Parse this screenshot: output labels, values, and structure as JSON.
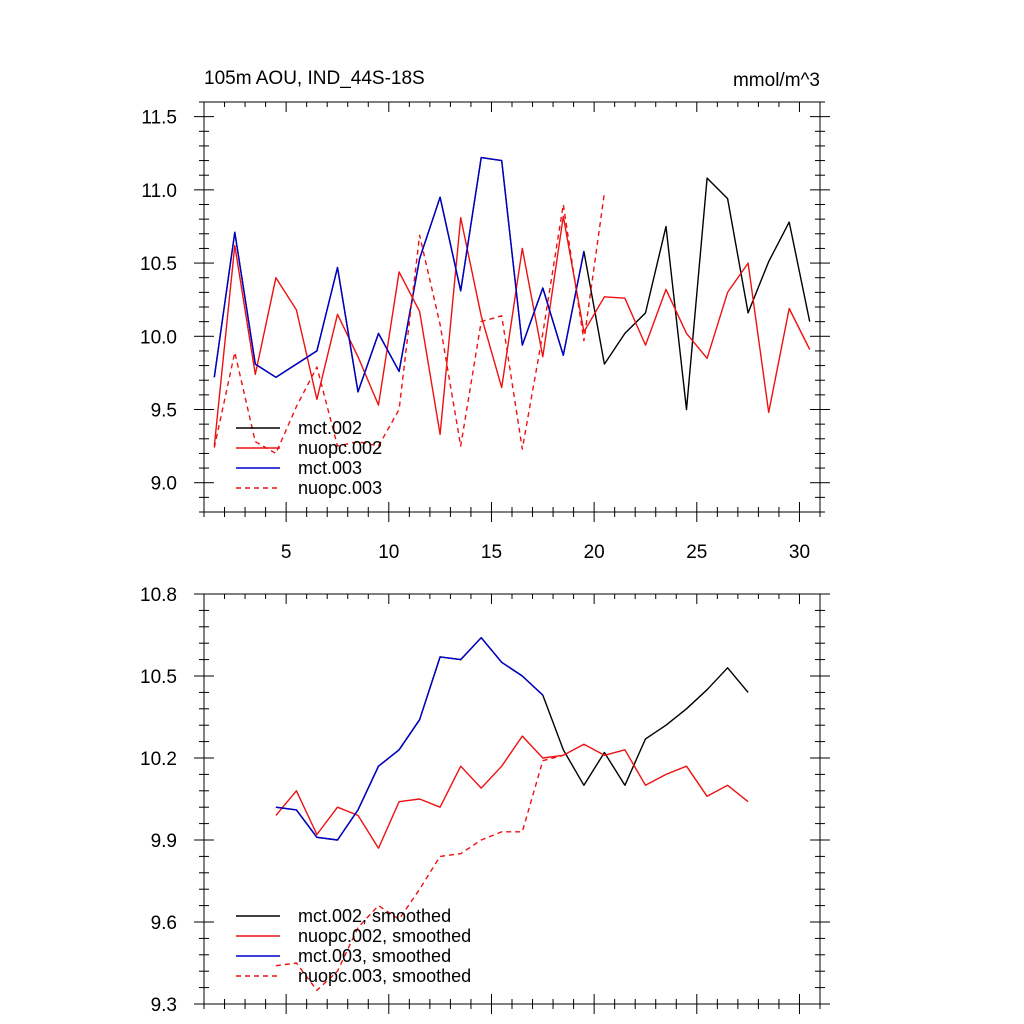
{
  "chart_data": [
    {
      "type": "line",
      "title": "105m AOU, IND_44S-18S",
      "units": "mmol/m^3",
      "xlim": [
        1,
        31
      ],
      "ylim": [
        8.8,
        11.6
      ],
      "xticks": [
        5,
        10,
        15,
        20,
        25,
        30
      ],
      "xtick_labels": [
        "5",
        "10",
        "15",
        "20",
        "25",
        "30"
      ],
      "yticks": [
        9.0,
        9.5,
        10.0,
        10.5,
        11.0,
        11.5
      ],
      "ytick_labels": [
        "9.0",
        "9.5",
        "10.0",
        "10.5",
        "11.0",
        "11.5"
      ],
      "legend_position": "bottom-left",
      "series": [
        {
          "name": "mct.002",
          "color": "#000000",
          "dash": false,
          "x": [
            1.5,
            2.5,
            3.5,
            4.5,
            5.5,
            6.5,
            7.5,
            8.5,
            9.5,
            10.5,
            11.5,
            12.5,
            13.5,
            14.5,
            15.5,
            16.5,
            17.5,
            18.5,
            19.5,
            20.5,
            21.5,
            22.5,
            23.5,
            24.5,
            25.5,
            26.5,
            27.5,
            28.5,
            29.5,
            30.5
          ],
          "values": [
            9.72,
            10.71,
            9.81,
            9.72,
            9.81,
            9.9,
            10.47,
            9.62,
            10.02,
            9.76,
            10.53,
            10.95,
            10.31,
            11.22,
            11.2,
            9.94,
            10.33,
            9.87,
            10.58,
            9.81,
            10.02,
            10.16,
            10.75,
            9.5,
            11.08,
            10.94,
            10.16,
            10.51,
            10.78,
            10.1
          ]
        },
        {
          "name": "nuopc.002",
          "color": "#ee1111",
          "dash": false,
          "x": [
            1.5,
            2.5,
            3.5,
            4.5,
            5.5,
            6.5,
            7.5,
            8.5,
            9.5,
            10.5,
            11.5,
            12.5,
            13.5,
            14.5,
            15.5,
            16.5,
            17.5,
            18.5,
            19.5,
            20.5,
            21.5,
            22.5,
            23.5,
            24.5,
            25.5,
            26.5,
            27.5,
            28.5,
            29.5,
            30.5
          ],
          "values": [
            9.25,
            10.62,
            9.74,
            10.4,
            10.18,
            9.57,
            10.15,
            9.86,
            9.53,
            10.44,
            10.17,
            9.33,
            10.81,
            10.14,
            9.65,
            10.6,
            9.86,
            10.82,
            10.03,
            10.27,
            10.26,
            9.94,
            10.32,
            10.02,
            9.85,
            10.3,
            10.5,
            9.48,
            10.19,
            9.91
          ]
        },
        {
          "name": "mct.003",
          "color": "#0000cc",
          "dash": false,
          "x": [
            1.5,
            2.5,
            3.5,
            4.5,
            5.5,
            6.5,
            7.5,
            8.5,
            9.5,
            10.5,
            11.5,
            12.5,
            13.5,
            14.5,
            15.5,
            16.5,
            17.5,
            18.5,
            19.5
          ],
          "values": [
            9.72,
            10.71,
            9.81,
            9.72,
            9.81,
            9.9,
            10.47,
            9.62,
            10.02,
            9.76,
            10.53,
            10.95,
            10.31,
            11.22,
            11.2,
            9.94,
            10.33,
            9.87,
            10.58
          ]
        },
        {
          "name": "nuopc.003",
          "color": "#ee1111",
          "dash": true,
          "x": [
            1.5,
            2.5,
            3.5,
            4.5,
            5.5,
            6.5,
            7.5,
            8.5,
            9.5,
            10.5,
            11.5,
            12.5,
            13.5,
            14.5,
            15.5,
            16.5,
            17.5,
            18.5,
            19.5,
            20.5
          ],
          "values": [
            9.24,
            9.89,
            9.28,
            9.2,
            9.52,
            9.79,
            9.25,
            9.28,
            9.25,
            9.5,
            10.69,
            10.08,
            9.25,
            10.1,
            10.14,
            9.23,
            10.02,
            10.9,
            9.97,
            10.98
          ]
        }
      ]
    },
    {
      "type": "line",
      "title": "",
      "xlim": [
        1,
        31
      ],
      "ylim": [
        9.3,
        10.8
      ],
      "xticks": [
        5,
        10,
        15,
        20,
        25,
        30
      ],
      "xtick_labels": [],
      "yticks": [
        9.3,
        9.6,
        9.9,
        10.2,
        10.5,
        10.8
      ],
      "ytick_labels": [
        "9.3",
        "9.6",
        "9.9",
        "10.2",
        "10.5",
        "10.8"
      ],
      "legend_position": "bottom-left",
      "series": [
        {
          "name": "mct.002, smoothed",
          "color": "#000000",
          "dash": false,
          "x": [
            4.5,
            5.5,
            6.5,
            7.5,
            8.5,
            9.5,
            10.5,
            11.5,
            12.5,
            13.5,
            14.5,
            15.5,
            16.5,
            17.5,
            18.5,
            19.5,
            20.5,
            21.5,
            22.5,
            23.5,
            24.5,
            25.5,
            26.5,
            27.5
          ],
          "values": [
            10.02,
            10.01,
            9.91,
            9.9,
            10.01,
            10.17,
            10.23,
            10.34,
            10.57,
            10.56,
            10.64,
            10.55,
            10.5,
            10.43,
            10.23,
            10.1,
            10.22,
            10.1,
            10.27,
            10.32,
            10.38,
            10.45,
            10.53,
            10.44
          ]
        },
        {
          "name": "nuopc.002, smoothed",
          "color": "#ee1111",
          "dash": false,
          "x": [
            4.5,
            5.5,
            6.5,
            7.5,
            8.5,
            9.5,
            10.5,
            11.5,
            12.5,
            13.5,
            14.5,
            15.5,
            16.5,
            17.5,
            18.5,
            19.5,
            20.5,
            21.5,
            22.5,
            23.5,
            24.5,
            25.5,
            26.5,
            27.5
          ],
          "values": [
            9.99,
            10.08,
            9.92,
            10.02,
            9.99,
            9.87,
            10.04,
            10.05,
            10.02,
            10.17,
            10.09,
            10.17,
            10.28,
            10.2,
            10.21,
            10.25,
            10.21,
            10.23,
            10.1,
            10.14,
            10.17,
            10.06,
            10.1,
            10.04
          ]
        },
        {
          "name": "mct.003, smoothed",
          "color": "#0000cc",
          "dash": false,
          "x": [
            4.5,
            5.5,
            6.5,
            7.5,
            8.5,
            9.5,
            10.5,
            11.5,
            12.5,
            13.5,
            14.5,
            15.5,
            16.5,
            17.5
          ],
          "values": [
            10.02,
            10.01,
            9.91,
            9.9,
            10.01,
            10.17,
            10.23,
            10.34,
            10.57,
            10.56,
            10.64,
            10.55,
            10.5,
            10.43
          ]
        },
        {
          "name": "nuopc.003, smoothed",
          "color": "#ee1111",
          "dash": true,
          "x": [
            4.5,
            5.5,
            6.5,
            7.5,
            8.5,
            9.5,
            10.5,
            11.5,
            12.5,
            13.5,
            14.5,
            15.5,
            16.5,
            17.5,
            18.5
          ],
          "values": [
            9.44,
            9.45,
            9.35,
            9.42,
            9.58,
            9.66,
            9.61,
            9.72,
            9.84,
            9.85,
            9.9,
            9.93,
            9.93,
            10.19,
            10.21
          ]
        }
      ]
    }
  ]
}
